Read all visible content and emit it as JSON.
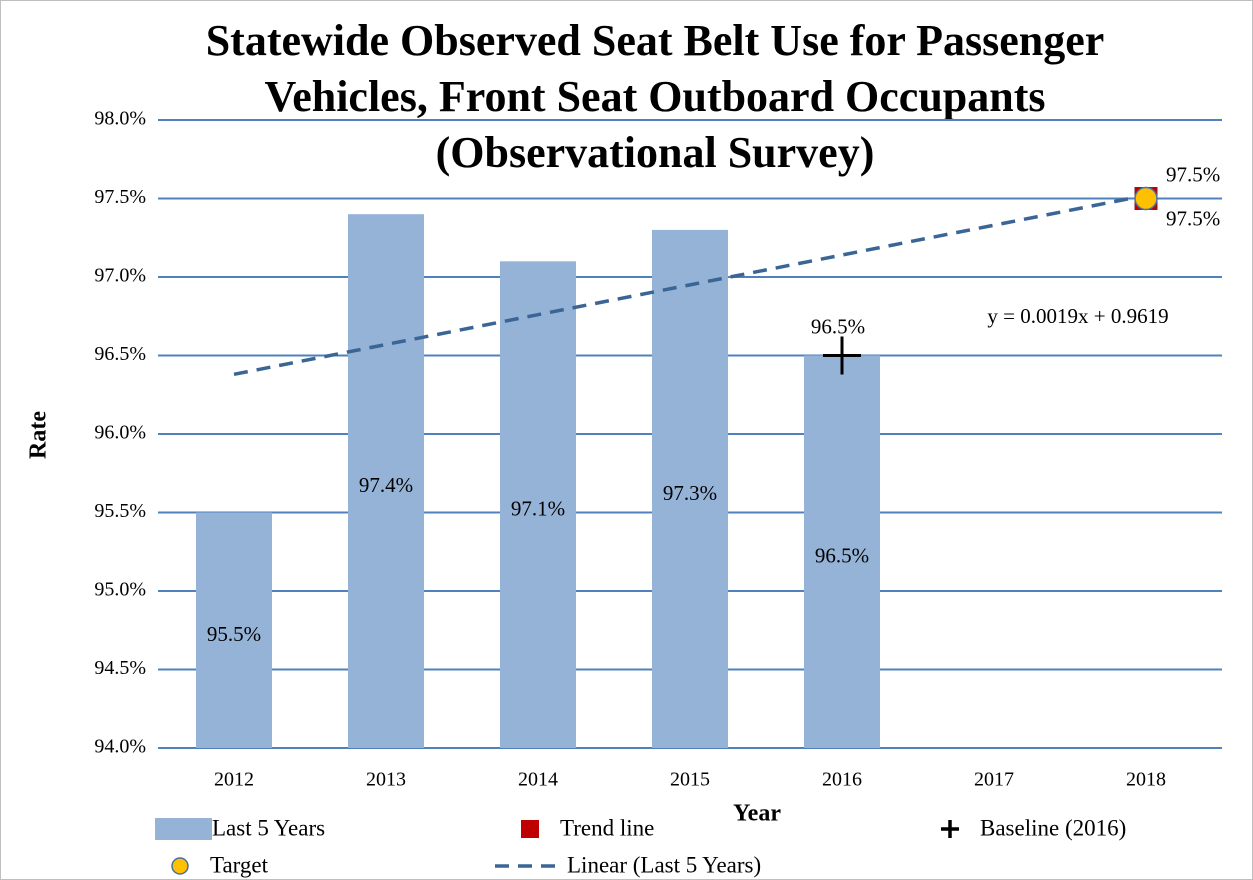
{
  "chart_data": {
    "type": "bar",
    "title": [
      "Statewide Observed Seat Belt Use for Passenger",
      "Vehicles, Front Seat Outboard Occupants",
      "(Observational Survey)"
    ],
    "x_label": "Year",
    "y_label": "Rate",
    "categories": [
      "2012",
      "2013",
      "2014",
      "2015",
      "2016",
      "2017",
      "2018"
    ],
    "ylim": [
      94.0,
      98.0
    ],
    "yticks": [
      {
        "value": 94.0,
        "label": "94.0%"
      },
      {
        "value": 94.5,
        "label": "94.5%"
      },
      {
        "value": 95.0,
        "label": "95.0%"
      },
      {
        "value": 95.5,
        "label": "95.5%"
      },
      {
        "value": 96.0,
        "label": "96.0%"
      },
      {
        "value": 96.5,
        "label": "96.5%"
      },
      {
        "value": 97.0,
        "label": "97.0%"
      },
      {
        "value": 97.5,
        "label": "97.5%"
      },
      {
        "value": 98.0,
        "label": "98.0%"
      }
    ],
    "grid": true,
    "grid_color": "#4f81bd",
    "legend": "bottom",
    "annotation": "y = 0.0019x + 0.9619",
    "series": [
      {
        "name": "Last 5 Years",
        "type": "bar",
        "color": "#95b3d7",
        "values": [
          95.5,
          97.4,
          97.1,
          97.3,
          96.5,
          null,
          null
        ],
        "value_labels": [
          "95.5%",
          "97.4%",
          "97.1%",
          "97.3%",
          "96.5%",
          null,
          null
        ]
      },
      {
        "name": "Trend line",
        "type": "square",
        "color": "#c00000",
        "values": [
          null,
          null,
          null,
          null,
          null,
          null,
          97.5
        ],
        "value_labels": [
          null,
          null,
          null,
          null,
          null,
          null,
          "97.5%"
        ]
      },
      {
        "name": "Baseline (2016)",
        "type": "plus",
        "color": "#000000",
        "values": [
          null,
          null,
          null,
          null,
          96.5,
          null,
          null
        ],
        "value_labels": [
          null,
          null,
          null,
          null,
          "96.5%",
          null,
          null
        ]
      },
      {
        "name": "Target",
        "type": "circle",
        "color": "#ffc000",
        "values": [
          null,
          null,
          null,
          null,
          null,
          null,
          97.5
        ],
        "value_labels": [
          null,
          null,
          null,
          null,
          null,
          null,
          "97.5%"
        ]
      },
      {
        "name": "Linear (Last 5 Years)",
        "type": "line",
        "dashed": true,
        "color": "#3a6595",
        "values": [
          96.38,
          96.57,
          96.76,
          96.95,
          97.14,
          97.33,
          97.52
        ]
      }
    ]
  }
}
